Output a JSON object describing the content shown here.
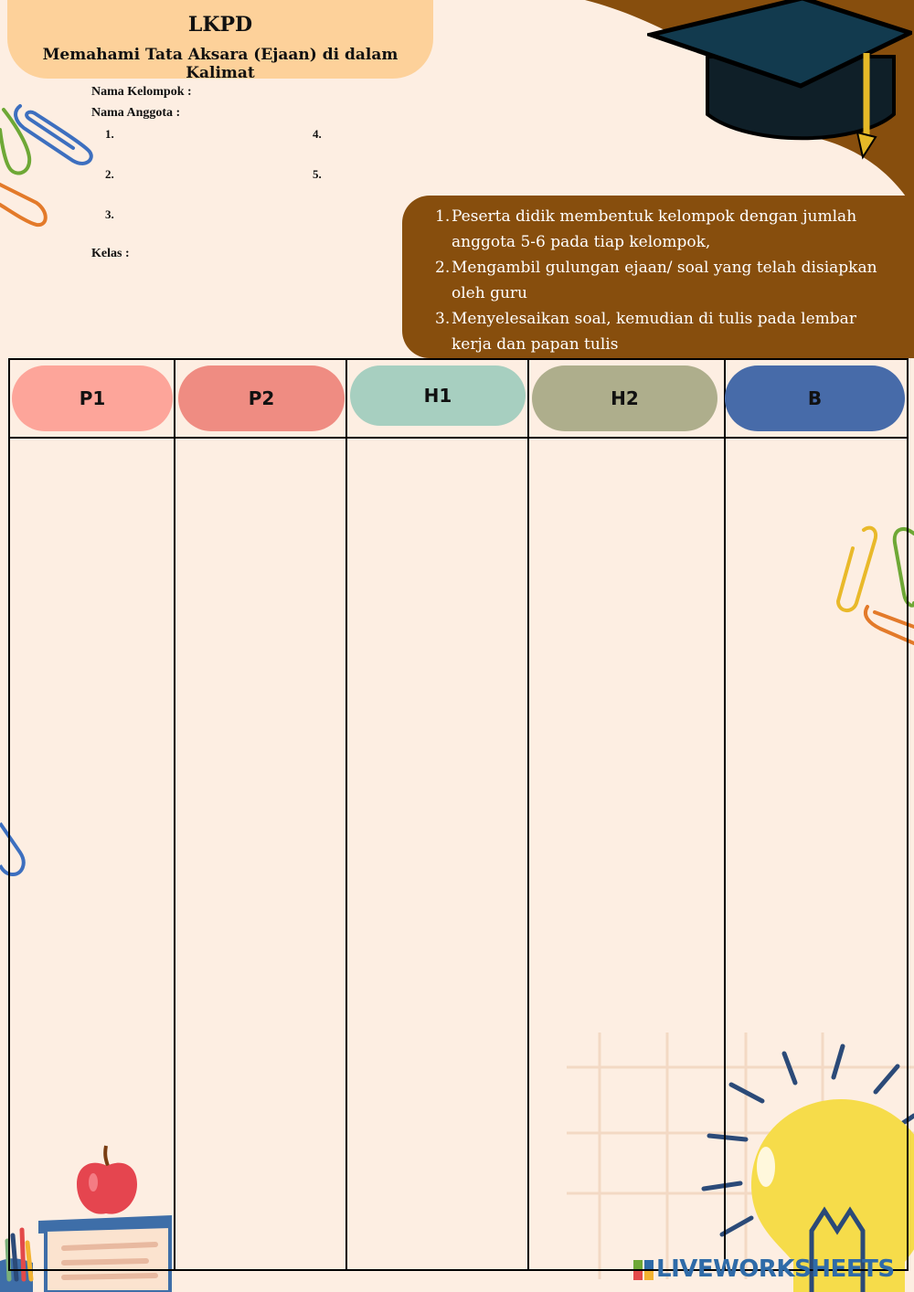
{
  "header": {
    "title": "LKPD",
    "subtitle": "Memahami Tata Aksara (Ejaan) di dalam Kalimat"
  },
  "form": {
    "group_label": "Nama Kelompok :",
    "members_label": "Nama Anggota :",
    "member_numbers": [
      "1.",
      "2.",
      "3.",
      "4.",
      "5."
    ],
    "class_label": "Kelas :"
  },
  "instructions": [
    {
      "num": "1.",
      "text": "Peserta didik membentuk kelompok dengan jumlah anggota 5-6 pada tiap kelompok,"
    },
    {
      "num": "2.",
      "text": "Mengambil gulungan ejaan/ soal yang telah disiapkan oleh guru"
    },
    {
      "num": "3.",
      "text": "Menyelesaikan soal, kemudian di tulis pada lembar kerja dan papan tulis"
    }
  ],
  "columns": [
    {
      "label": "P1",
      "color": "#fda59a"
    },
    {
      "label": "P2",
      "color": "#ef8c82"
    },
    {
      "label": "H1",
      "color": "#a7cfc0"
    },
    {
      "label": "H2",
      "color": "#aeae8c"
    },
    {
      "label": "B",
      "color": "#476ba9"
    }
  ],
  "colors": {
    "background": "#fdeee2",
    "title_box": "#fdd19a",
    "instructions_box": "#874e0d",
    "corner_shape": "#874e0d"
  },
  "icons": [
    "graduation-cap-icon",
    "paperclip-icon",
    "apple-icon",
    "books-icon",
    "lightbulb-icon"
  ],
  "brand": {
    "name": "LIVEWORKSHEETS"
  }
}
